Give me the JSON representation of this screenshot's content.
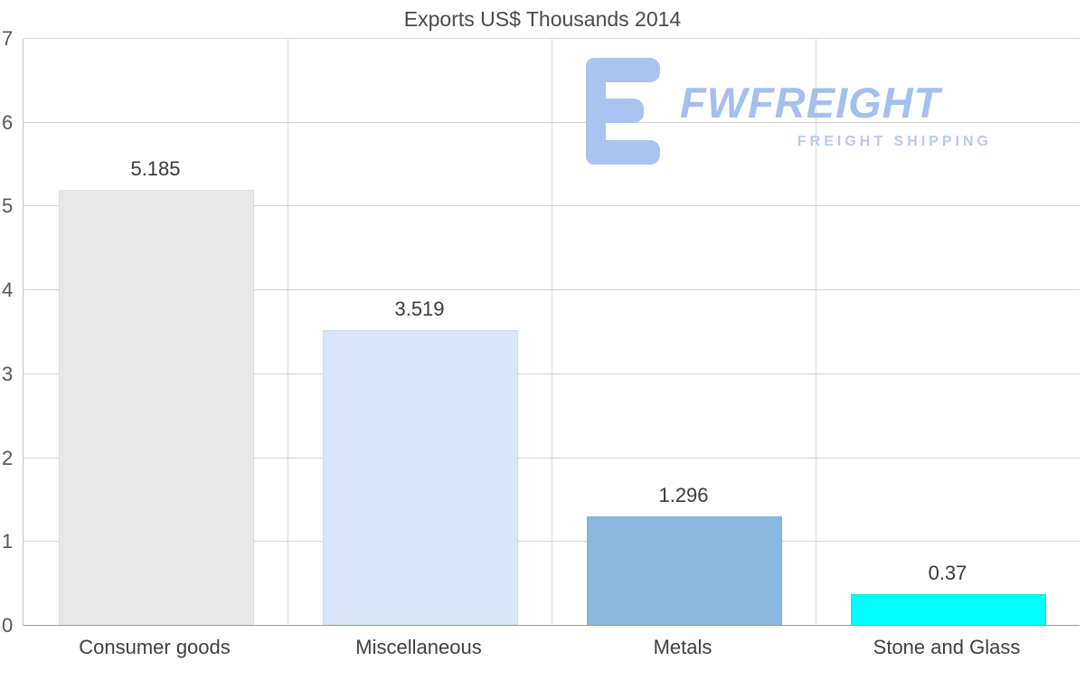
{
  "chart_data": {
    "type": "bar",
    "title": "Exports US$ Thousands 2014",
    "categories": [
      "Consumer goods",
      "Miscellaneous",
      "Metals",
      "Stone and Glass"
    ],
    "values": [
      5.185,
      3.519,
      1.296,
      0.37
    ],
    "value_labels": [
      "5.185",
      "3.519",
      "1.296",
      "0.37"
    ],
    "bar_colors": [
      "#e8e8e8",
      "#d8e6f8",
      "#8ab7de",
      "#00ffff"
    ],
    "bar_border_colors": [
      "#dedede",
      "#cadcf2",
      "#7fadd6",
      "#0ee4ea"
    ],
    "xlabel": "",
    "ylabel": "",
    "ylim": [
      0,
      7
    ],
    "yticks": [
      0,
      1,
      2,
      3,
      4,
      5,
      6,
      7
    ],
    "grid": "horizontal gridlines plus vertical category separators",
    "legend": "none"
  },
  "watermark": {
    "brand": "FWFREIGHT",
    "tagline": "FREIGHT SHIPPING",
    "color": "#a3c0ee"
  }
}
